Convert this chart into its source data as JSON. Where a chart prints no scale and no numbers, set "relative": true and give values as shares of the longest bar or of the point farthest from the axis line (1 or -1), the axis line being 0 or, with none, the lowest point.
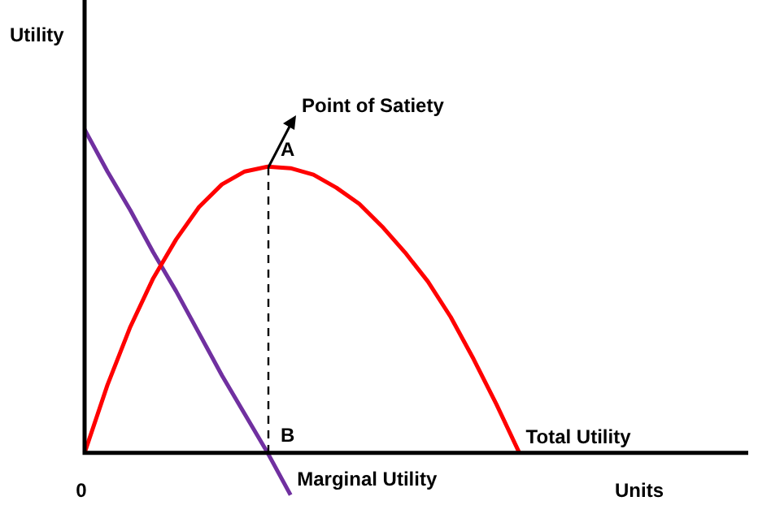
{
  "chart_data": {
    "type": "line",
    "relative": true,
    "xlabel": "Units",
    "ylabel": "Utility",
    "categories": [
      null,
      null,
      null,
      null,
      null,
      null,
      null,
      null,
      null,
      null,
      null,
      null,
      null,
      null,
      null,
      null,
      null,
      null,
      null,
      null,
      null,
      null,
      null,
      null,
      null,
      null,
      null,
      null,
      null,
      null
    ],
    "legend": false,
    "marker": "none",
    "series": [
      {
        "name": "Total Utility",
        "color": "#ff0000",
        "values": [
          0,
          0.21,
          0.39,
          0.54,
          0.66,
          0.76,
          0.83,
          0.87,
          0.885,
          0.88,
          0.86,
          0.82,
          0.77,
          0.7,
          0.62,
          0.53,
          0.42,
          0.29,
          0.15,
          0,
          null,
          null,
          null,
          null,
          null,
          null,
          null,
          null,
          null,
          null
        ]
      },
      {
        "name": "Marginal Utility",
        "color": "#7030a0",
        "values": [
          1,
          0.87,
          0.75,
          0.62,
          0.5,
          0.37,
          0.24,
          0.12,
          0,
          -0.13,
          null,
          null,
          null,
          null,
          null,
          null,
          null,
          null,
          null,
          null,
          null,
          null,
          null,
          null,
          null,
          null,
          null,
          null,
          null,
          null
        ]
      }
    ],
    "annotations": [
      "A",
      "Point of Satiety",
      "B",
      "0"
    ]
  }
}
